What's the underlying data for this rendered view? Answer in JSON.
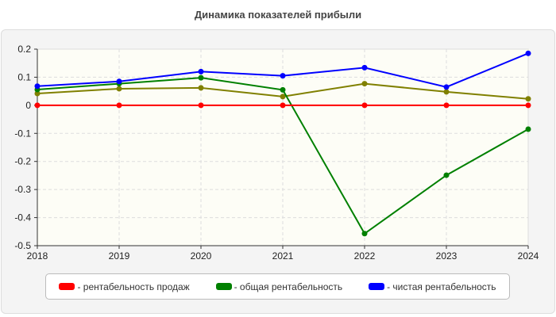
{
  "chart_data": {
    "type": "line",
    "title": "Динамика показателей прибыли",
    "x": [
      "2018",
      "2019",
      "2020",
      "2021",
      "2022",
      "2023",
      "2024"
    ],
    "ylim": [
      -0.5,
      0.2
    ],
    "yticks": [
      "0.2",
      "0.1",
      "0",
      "-0.1",
      "-0.2",
      "-0.3",
      "-0.4",
      "-0.5"
    ],
    "grid": true,
    "legend_position": "bottom",
    "series": [
      {
        "name": "- рентабельность продаж",
        "color": "#ff0000",
        "values": [
          0,
          0,
          0,
          0,
          0,
          0,
          0
        ]
      },
      {
        "name": "- общая рентабельность",
        "color": "#008000",
        "values": [
          0.056,
          0.077,
          0.098,
          0.055,
          -0.457,
          -0.249,
          -0.085
        ]
      },
      {
        "name": "- чистая рентабельность",
        "color": "#0000ff",
        "values": [
          0.068,
          0.085,
          0.12,
          0.105,
          0.134,
          0.065,
          0.185
        ]
      },
      {
        "color": "#808000",
        "values": [
          0.042,
          0.059,
          0.062,
          0.031,
          0.077,
          0.048,
          0.023
        ]
      }
    ]
  }
}
